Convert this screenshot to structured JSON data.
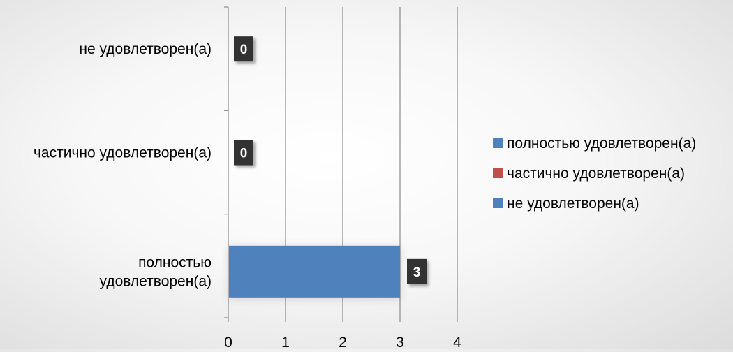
{
  "chart_data": {
    "type": "bar",
    "orientation": "horizontal",
    "categories": [
      "полностью удовлетворен(а)",
      "частично удовлетворен(а)",
      "не удовлетворен(а)"
    ],
    "category_label_lines": [
      [
        "полностью",
        "удовлетворен(а)"
      ],
      [
        "частично удовлетворен(а)"
      ],
      [
        "не удовлетворен(а)"
      ]
    ],
    "series": [
      {
        "name": "полностью удовлетворен(а)",
        "color": "#4f81bd",
        "values": [
          3,
          0,
          0
        ]
      },
      {
        "name": "частично удовлетворен(а)",
        "color": "#c0504d",
        "values": [
          0,
          0,
          0
        ]
      },
      {
        "name": "не удовлетворен(а)",
        "color": "#4f81bd",
        "values": [
          0,
          0,
          0
        ]
      }
    ],
    "data_labels": [
      "3",
      "0",
      "0"
    ],
    "x_ticks": [
      "0",
      "1",
      "2",
      "3",
      "4"
    ],
    "xlim": [
      0,
      4
    ],
    "grid": true,
    "legend_position": "right",
    "data_label_style": {
      "background": "#333333",
      "color": "#ffffff"
    }
  }
}
